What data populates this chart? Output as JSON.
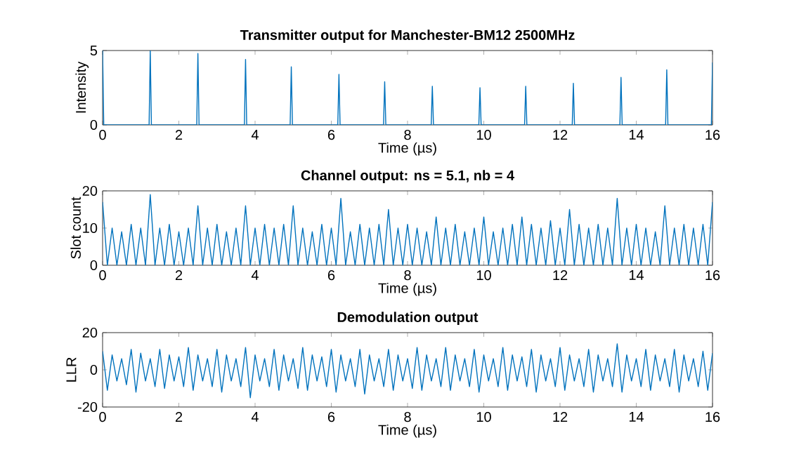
{
  "chart_data": [
    {
      "type": "line",
      "title": "Transmitter output for Manchester-BM12 2500MHz",
      "xlabel": "Time (µs)",
      "ylabel": "Intensity",
      "x": [
        0,
        0.03,
        1.22,
        1.25,
        1.28,
        2.47,
        2.5,
        2.53,
        3.72,
        3.75,
        3.78,
        4.92,
        4.95,
        4.98,
        6.17,
        6.2,
        6.23,
        7.37,
        7.4,
        7.43,
        8.62,
        8.65,
        8.68,
        9.87,
        9.9,
        9.93,
        11.07,
        11.1,
        11.13,
        12.32,
        12.35,
        12.38,
        13.57,
        13.6,
        13.63,
        14.77,
        14.8,
        14.83,
        15.97,
        16
      ],
      "series": [
        {
          "color": "#0072bd",
          "values": [
            5,
            0,
            0,
            5,
            0,
            0,
            4.8,
            0,
            0,
            4.4,
            0,
            0,
            3.9,
            0,
            0,
            3.4,
            0,
            0,
            2.9,
            0,
            0,
            2.6,
            0,
            0,
            2.5,
            0,
            0,
            2.6,
            0,
            0,
            2.8,
            0,
            0,
            3.2,
            0,
            0,
            3.7,
            0,
            0,
            4.2
          ]
        }
      ],
      "xlim": [
        0,
        16
      ],
      "ylim": [
        0,
        5
      ],
      "xticks": [
        0,
        2,
        4,
        6,
        8,
        10,
        12,
        14,
        16
      ],
      "yticks": [
        0,
        5
      ]
    },
    {
      "type": "line",
      "title": "Channel output: ns = 5.1, nb = 4",
      "xlabel": "Time (µs)",
      "ylabel": "Slot count",
      "x": [
        0,
        0.125,
        0.25,
        0.375,
        0.5,
        0.625,
        0.75,
        0.875,
        1,
        1.125,
        1.25,
        1.375,
        1.5,
        1.625,
        1.75,
        1.875,
        2,
        2.125,
        2.25,
        2.375,
        2.5,
        2.625,
        2.75,
        2.875,
        3,
        3.125,
        3.25,
        3.375,
        3.5,
        3.625,
        3.75,
        3.875,
        4,
        4.125,
        4.25,
        4.375,
        4.5,
        4.625,
        4.75,
        4.875,
        5,
        5.125,
        5.25,
        5.375,
        5.5,
        5.625,
        5.75,
        5.875,
        6,
        6.125,
        6.25,
        6.375,
        6.5,
        6.625,
        6.75,
        6.875,
        7,
        7.125,
        7.25,
        7.375,
        7.5,
        7.625,
        7.75,
        7.875,
        8,
        8.125,
        8.25,
        8.375,
        8.5,
        8.625,
        8.75,
        8.875,
        9,
        9.125,
        9.25,
        9.375,
        9.5,
        9.625,
        9.75,
        9.875,
        10,
        10.125,
        10.25,
        10.375,
        10.5,
        10.625,
        10.75,
        10.875,
        11,
        11.125,
        11.25,
        11.375,
        11.5,
        11.625,
        11.75,
        11.875,
        12,
        12.125,
        12.25,
        12.375,
        12.5,
        12.625,
        12.75,
        12.875,
        13,
        13.125,
        13.25,
        13.375,
        13.5,
        13.625,
        13.75,
        13.875,
        14,
        14.125,
        14.25,
        14.375,
        14.5,
        14.625,
        14.75,
        14.875,
        15,
        15.125,
        15.25,
        15.375,
        15.5,
        15.625,
        15.75,
        15.875,
        16
      ],
      "series": [
        {
          "color": "#0072bd",
          "values": [
            17,
            0,
            10,
            0,
            9,
            0,
            11,
            0,
            10,
            0,
            19,
            0,
            10,
            0,
            11,
            0,
            9,
            0,
            10,
            0,
            16,
            0,
            10,
            0,
            11,
            0,
            9,
            0,
            10,
            0,
            16,
            0,
            10,
            0,
            11,
            0,
            10,
            0,
            11,
            0,
            16,
            0,
            10,
            0,
            9,
            0,
            11,
            0,
            10,
            0,
            18,
            0,
            9,
            0,
            11,
            0,
            10,
            0,
            11,
            0,
            15,
            0,
            10,
            0,
            11,
            0,
            10,
            0,
            9,
            0,
            13,
            0,
            10,
            0,
            11,
            0,
            9,
            0,
            10,
            0,
            13,
            0,
            9,
            0,
            10,
            0,
            11,
            0,
            13,
            0,
            11,
            0,
            10,
            0,
            12,
            0,
            10,
            0,
            15,
            0,
            11,
            0,
            10,
            0,
            11,
            0,
            10,
            0,
            18,
            0,
            10,
            0,
            11,
            0,
            10,
            0,
            9,
            0,
            16,
            0,
            10,
            0,
            11,
            0,
            10,
            0,
            11,
            0,
            17
          ]
        }
      ],
      "xlim": [
        0,
        16
      ],
      "ylim": [
        0,
        20
      ],
      "xticks": [
        0,
        2,
        4,
        6,
        8,
        10,
        12,
        14,
        16
      ],
      "yticks": [
        0,
        10,
        20
      ]
    },
    {
      "type": "line",
      "title": "Demodulation output",
      "xlabel": "Time (µs)",
      "ylabel": "LLR",
      "x": [
        0,
        0.125,
        0.25,
        0.375,
        0.5,
        0.625,
        0.75,
        0.875,
        1,
        1.125,
        1.25,
        1.375,
        1.5,
        1.625,
        1.75,
        1.875,
        2,
        2.125,
        2.25,
        2.375,
        2.5,
        2.625,
        2.75,
        2.875,
        3,
        3.125,
        3.25,
        3.375,
        3.5,
        3.625,
        3.75,
        3.875,
        4,
        4.125,
        4.25,
        4.375,
        4.5,
        4.625,
        4.75,
        4.875,
        5,
        5.125,
        5.25,
        5.375,
        5.5,
        5.625,
        5.75,
        5.875,
        6,
        6.125,
        6.25,
        6.375,
        6.5,
        6.625,
        6.75,
        6.875,
        7,
        7.125,
        7.25,
        7.375,
        7.5,
        7.625,
        7.75,
        7.875,
        8,
        8.125,
        8.25,
        8.375,
        8.5,
        8.625,
        8.75,
        8.875,
        9,
        9.125,
        9.25,
        9.375,
        9.5,
        9.625,
        9.75,
        9.875,
        10,
        10.125,
        10.25,
        10.375,
        10.5,
        10.625,
        10.75,
        10.875,
        11,
        11.125,
        11.25,
        11.375,
        11.5,
        11.625,
        11.75,
        11.875,
        12,
        12.125,
        12.25,
        12.375,
        12.5,
        12.625,
        12.75,
        12.875,
        13,
        13.125,
        13.25,
        13.375,
        13.5,
        13.625,
        13.75,
        13.875,
        14,
        14.125,
        14.25,
        14.375,
        14.5,
        14.625,
        14.75,
        14.875,
        15,
        15.125,
        15.25,
        15.375,
        15.5,
        15.625,
        15.75,
        15.875,
        16
      ],
      "series": [
        {
          "color": "#0072bd",
          "values": [
            10,
            -11,
            8,
            -6,
            6,
            -8,
            11,
            -12,
            9,
            -6,
            6,
            -9,
            11,
            -10,
            8,
            -6,
            7,
            -9,
            12,
            -11,
            8,
            -6,
            6,
            -9,
            11,
            -12,
            8,
            -6,
            6,
            -9,
            12,
            -15,
            8,
            -6,
            6,
            -9,
            11,
            -11,
            8,
            -6,
            6,
            -10,
            12,
            -11,
            8,
            -6,
            7,
            -9,
            11,
            -12,
            8,
            -6,
            6,
            -9,
            11,
            -13,
            8,
            -6,
            6,
            -9,
            11,
            -11,
            8,
            -6,
            6,
            -10,
            12,
            -11,
            8,
            -6,
            6,
            -9,
            12,
            -11,
            8,
            -6,
            6,
            -9,
            11,
            -12,
            8,
            -6,
            6,
            -9,
            12,
            -11,
            8,
            -6,
            7,
            -9,
            11,
            -12,
            8,
            -6,
            6,
            -9,
            12,
            -11,
            8,
            -6,
            6,
            -9,
            11,
            -12,
            8,
            -6,
            6,
            -9,
            14,
            -12,
            8,
            -6,
            6,
            -9,
            11,
            -11,
            8,
            -6,
            6,
            -9,
            11,
            -12,
            8,
            -6,
            6,
            -9,
            10,
            -11,
            9
          ]
        }
      ],
      "xlim": [
        0,
        16
      ],
      "ylim": [
        -20,
        20
      ],
      "xticks": [
        0,
        2,
        4,
        6,
        8,
        10,
        12,
        14,
        16
      ],
      "yticks": [
        -20,
        0,
        20
      ]
    }
  ]
}
